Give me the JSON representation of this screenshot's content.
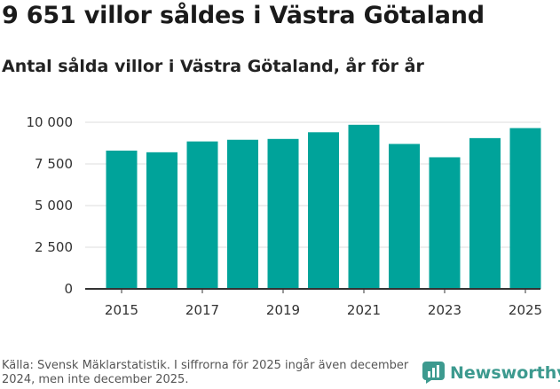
{
  "title": "9 651 villor såldes i Västra Götaland",
  "subtitle": "Antal sålda villor i Västra Götaland, år för år",
  "source": "Källa: Svensk Mäklarstatistik. I siffrorna för 2025 ingår även december 2024, men inte december 2025.",
  "logo": {
    "text": "Newsworthy",
    "icon": "newsworthy-logo-icon"
  },
  "colors": {
    "bar": "#00a39a",
    "grid": "#dddddd",
    "axis": "#333333",
    "logo": "#3d9a8f"
  },
  "chart_data": {
    "type": "bar",
    "categories": [
      "2015",
      "2016",
      "2017",
      "2018",
      "2019",
      "2020",
      "2021",
      "2022",
      "2023",
      "2024",
      "2025"
    ],
    "values": [
      8300,
      8200,
      8850,
      8950,
      9000,
      9400,
      9850,
      8700,
      7900,
      9050,
      9651
    ],
    "xtick_labels": [
      "2015",
      "2017",
      "2019",
      "2021",
      "2023",
      "2025"
    ],
    "ytick_values": [
      0,
      2500,
      5000,
      7500,
      10000
    ],
    "ytick_labels": [
      "0",
      "2 500",
      "5 000",
      "7 500",
      "10 000"
    ],
    "ylim": [
      0,
      10000
    ],
    "title": "9 651 villor såldes i Västra Götaland",
    "xlabel": "",
    "ylabel": "",
    "grid": true
  }
}
